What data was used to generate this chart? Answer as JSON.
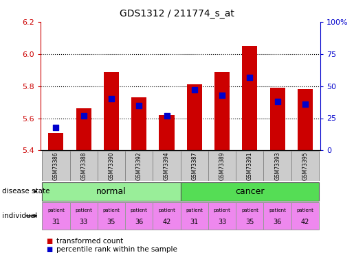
{
  "title": "GDS1312 / 211774_s_at",
  "samples": [
    "GSM73386",
    "GSM73388",
    "GSM73390",
    "GSM73392",
    "GSM73394",
    "GSM73387",
    "GSM73389",
    "GSM73391",
    "GSM73393",
    "GSM73395"
  ],
  "transformed_count": [
    5.51,
    5.66,
    5.89,
    5.73,
    5.62,
    5.81,
    5.89,
    6.05,
    5.79,
    5.78
  ],
  "percentile_rank": [
    18,
    27,
    40,
    35,
    27,
    47,
    43,
    57,
    38,
    36
  ],
  "y_min": 5.4,
  "y_max": 6.2,
  "y_ticks_left": [
    5.4,
    5.6,
    5.8,
    6.0,
    6.2
  ],
  "y_ticks_right": [
    0,
    25,
    50,
    75,
    100
  ],
  "patient_ids": [
    31,
    33,
    35,
    36,
    42,
    31,
    33,
    35,
    36,
    42
  ],
  "disease_state_label": "disease state",
  "individual_label": "individual",
  "bar_color": "#CC0000",
  "dot_color": "#0000CC",
  "bar_width": 0.55,
  "dot_size": 30,
  "bg_color": "#FFFFFF",
  "sample_bg_color": "#CCCCCC",
  "label_color_left": "#CC0000",
  "label_color_right": "#0000CC",
  "normal_color": "#99EE99",
  "cancer_color": "#55DD55",
  "patient_color": "#EE88EE",
  "legend_label_bar": "transformed count",
  "legend_label_dot": "percentile rank within the sample",
  "grid_yticks": [
    5.6,
    5.8,
    6.0
  ]
}
